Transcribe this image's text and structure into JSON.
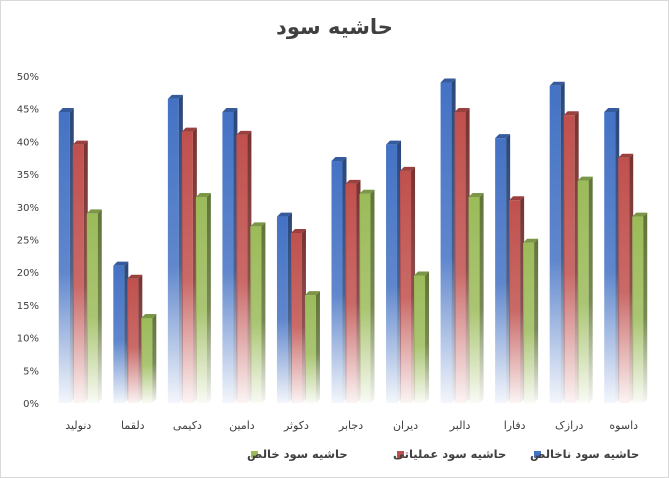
{
  "chart_data": {
    "type": "bar",
    "title": "حاشیه سود",
    "categories": [
      "دنولید",
      "دلقما",
      "دکیمی",
      "دامین",
      "دکوثر",
      "دجابر",
      "دیران",
      "دالبر",
      "دفارا",
      "درازک",
      "داسوه"
    ],
    "series": [
      {
        "name": "حاشیه سود ناخالص",
        "color": "#4472c4",
        "values": [
          44.5,
          21,
          46.5,
          44.5,
          28.5,
          37,
          39.5,
          49,
          40.5,
          48.5,
          44.5
        ]
      },
      {
        "name": "حاشیه سود عملیاتی",
        "color": "#c0504d",
        "values": [
          39.5,
          19,
          41.5,
          41,
          26,
          33.5,
          35.5,
          44.5,
          31,
          44,
          37.5
        ]
      },
      {
        "name": "حاشیه سود خالص",
        "color": "#9bbb59",
        "values": [
          29,
          13,
          31.5,
          27,
          16.5,
          32,
          19.5,
          31.5,
          24.5,
          34,
          28.5
        ]
      }
    ],
    "ylim": [
      0,
      50
    ],
    "yticks": [
      0,
      5,
      10,
      15,
      20,
      25,
      30,
      35,
      40,
      45,
      50
    ],
    "ytick_labels": [
      "0%",
      "5%",
      "10%",
      "15%",
      "20%",
      "25%",
      "30%",
      "35%",
      "40%",
      "45%",
      "50%"
    ],
    "legend_position": "bottom",
    "grid": false
  }
}
